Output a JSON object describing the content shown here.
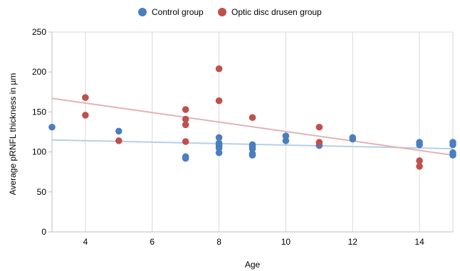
{
  "chart_data": {
    "type": "scatter",
    "xlabel": "Age",
    "ylabel": "Average pRNFL thickness in µm",
    "xlim": [
      3,
      15
    ],
    "ylim": [
      0,
      250
    ],
    "x_ticks": [
      4,
      6,
      8,
      10,
      12,
      14
    ],
    "y_ticks": [
      0,
      50,
      100,
      150,
      200,
      250
    ],
    "grid": "vertical",
    "legend_position": "top",
    "series": [
      {
        "name": "Control group",
        "color": "#4a7ec0",
        "trendline_color": "#b7cfe8",
        "trendline": [
          [
            3,
            115
          ],
          [
            15,
            104
          ]
        ],
        "points": [
          [
            3,
            131
          ],
          [
            5,
            126
          ],
          [
            7,
            94
          ],
          [
            7,
            92
          ],
          [
            8,
            118
          ],
          [
            8,
            111
          ],
          [
            8,
            109
          ],
          [
            8,
            107
          ],
          [
            8,
            105
          ],
          [
            8,
            99
          ],
          [
            9,
            109
          ],
          [
            9,
            107
          ],
          [
            9,
            104
          ],
          [
            9,
            98
          ],
          [
            9,
            96
          ],
          [
            10,
            120
          ],
          [
            10,
            114
          ],
          [
            11,
            108
          ],
          [
            12,
            118
          ],
          [
            12,
            116
          ],
          [
            14,
            112
          ],
          [
            14,
            109
          ],
          [
            15,
            112
          ],
          [
            15,
            109
          ],
          [
            15,
            99
          ],
          [
            15,
            96
          ]
        ]
      },
      {
        "name": "Optic disc drusen group",
        "color": "#c0504d",
        "trendline_color": "#e3b3b2",
        "trendline": [
          [
            3,
            167
          ],
          [
            15,
            96
          ]
        ],
        "points": [
          [
            4,
            168
          ],
          [
            4,
            146
          ],
          [
            5,
            114
          ],
          [
            7,
            153
          ],
          [
            7,
            141
          ],
          [
            7,
            134
          ],
          [
            7,
            113
          ],
          [
            8,
            204
          ],
          [
            8,
            164
          ],
          [
            9,
            143
          ],
          [
            11,
            131
          ],
          [
            11,
            112
          ],
          [
            14,
            89
          ],
          [
            14,
            82
          ]
        ]
      }
    ]
  }
}
